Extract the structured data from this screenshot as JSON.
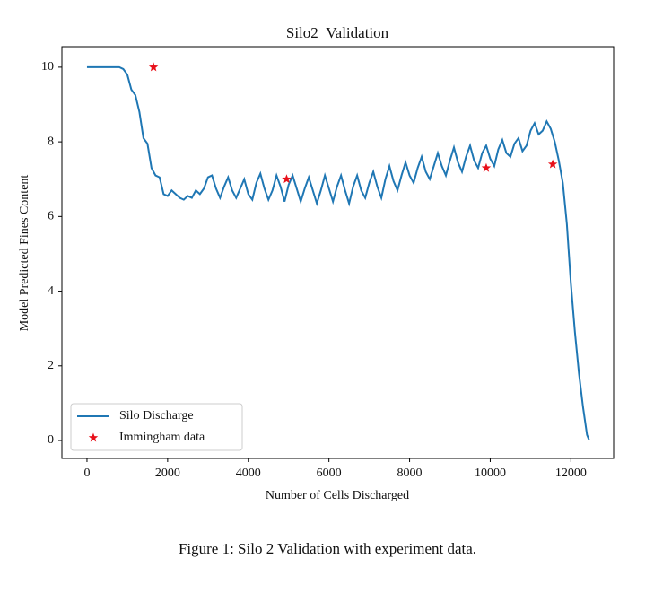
{
  "chart_data": {
    "type": "line",
    "title": "Silo2_Validation",
    "x_label": "Number of Cells Discharged",
    "y_label": "Model Predicted Fines Content",
    "xlim": [
      -622,
      13060
    ],
    "ylim": [
      -0.48,
      10.55
    ],
    "xticks": [
      0,
      2000,
      4000,
      6000,
      8000,
      10000,
      12000
    ],
    "yticks": [
      0,
      2,
      4,
      6,
      8,
      10
    ],
    "grid": false,
    "legend": "lower left",
    "series": [
      {
        "name": "Silo Discharge",
        "type": "line",
        "color": "#1f77b4",
        "x": [
          0,
          800,
          900,
          1000,
          1100,
          1200,
          1300,
          1400,
          1500,
          1600,
          1700,
          1800,
          1900,
          2000,
          2100,
          2200,
          2300,
          2400,
          2500,
          2600,
          2700,
          2800,
          2900,
          3000,
          3100,
          3200,
          3300,
          3400,
          3500,
          3600,
          3700,
          3800,
          3900,
          4000,
          4100,
          4200,
          4300,
          4400,
          4500,
          4600,
          4700,
          4800,
          4900,
          5000,
          5100,
          5200,
          5300,
          5400,
          5500,
          5600,
          5700,
          5800,
          5900,
          6000,
          6100,
          6200,
          6300,
          6400,
          6500,
          6600,
          6700,
          6800,
          6900,
          7000,
          7100,
          7200,
          7300,
          7400,
          7500,
          7600,
          7700,
          7800,
          7900,
          8000,
          8100,
          8200,
          8300,
          8400,
          8500,
          8600,
          8700,
          8800,
          8900,
          9000,
          9100,
          9200,
          9300,
          9400,
          9500,
          9600,
          9700,
          9800,
          9900,
          10000,
          10100,
          10200,
          10300,
          10400,
          10500,
          10600,
          10700,
          10800,
          10900,
          11000,
          11100,
          11200,
          11300,
          11400,
          11500,
          11600,
          11700,
          11800,
          11900,
          12000,
          12100,
          12200,
          12300,
          12400,
          12450
        ],
        "values": [
          10.0,
          10.0,
          9.95,
          9.8,
          9.4,
          9.25,
          8.8,
          8.1,
          7.95,
          7.3,
          7.1,
          7.05,
          6.6,
          6.55,
          6.7,
          6.6,
          6.5,
          6.45,
          6.55,
          6.5,
          6.7,
          6.6,
          6.75,
          7.05,
          7.1,
          6.75,
          6.5,
          6.8,
          7.05,
          6.7,
          6.5,
          6.75,
          7.0,
          6.6,
          6.45,
          6.9,
          7.15,
          6.75,
          6.45,
          6.7,
          7.1,
          6.8,
          6.4,
          6.85,
          7.1,
          6.75,
          6.4,
          6.75,
          7.05,
          6.7,
          6.35,
          6.7,
          7.1,
          6.75,
          6.4,
          6.8,
          7.1,
          6.7,
          6.35,
          6.8,
          7.1,
          6.7,
          6.5,
          6.9,
          7.2,
          6.8,
          6.5,
          7.0,
          7.35,
          6.95,
          6.7,
          7.1,
          7.45,
          7.1,
          6.9,
          7.3,
          7.6,
          7.2,
          7.0,
          7.35,
          7.7,
          7.35,
          7.1,
          7.5,
          7.85,
          7.45,
          7.2,
          7.6,
          7.9,
          7.5,
          7.3,
          7.7,
          7.9,
          7.55,
          7.35,
          7.8,
          8.05,
          7.7,
          7.6,
          7.95,
          8.1,
          7.75,
          7.9,
          8.3,
          8.5,
          8.2,
          8.3,
          8.55,
          8.35,
          8.0,
          7.5,
          6.9,
          5.8,
          4.2,
          2.9,
          1.8,
          0.9,
          0.15,
          0.02
        ]
      },
      {
        "name": "Immingham data",
        "type": "scatter",
        "color": "#e8101a",
        "x": [
          1650,
          4950,
          9900,
          11550
        ],
        "values": [
          10.0,
          7.0,
          7.3,
          7.4
        ]
      }
    ]
  },
  "caption": "Figure 1: Silo 2 Validation with experiment data."
}
